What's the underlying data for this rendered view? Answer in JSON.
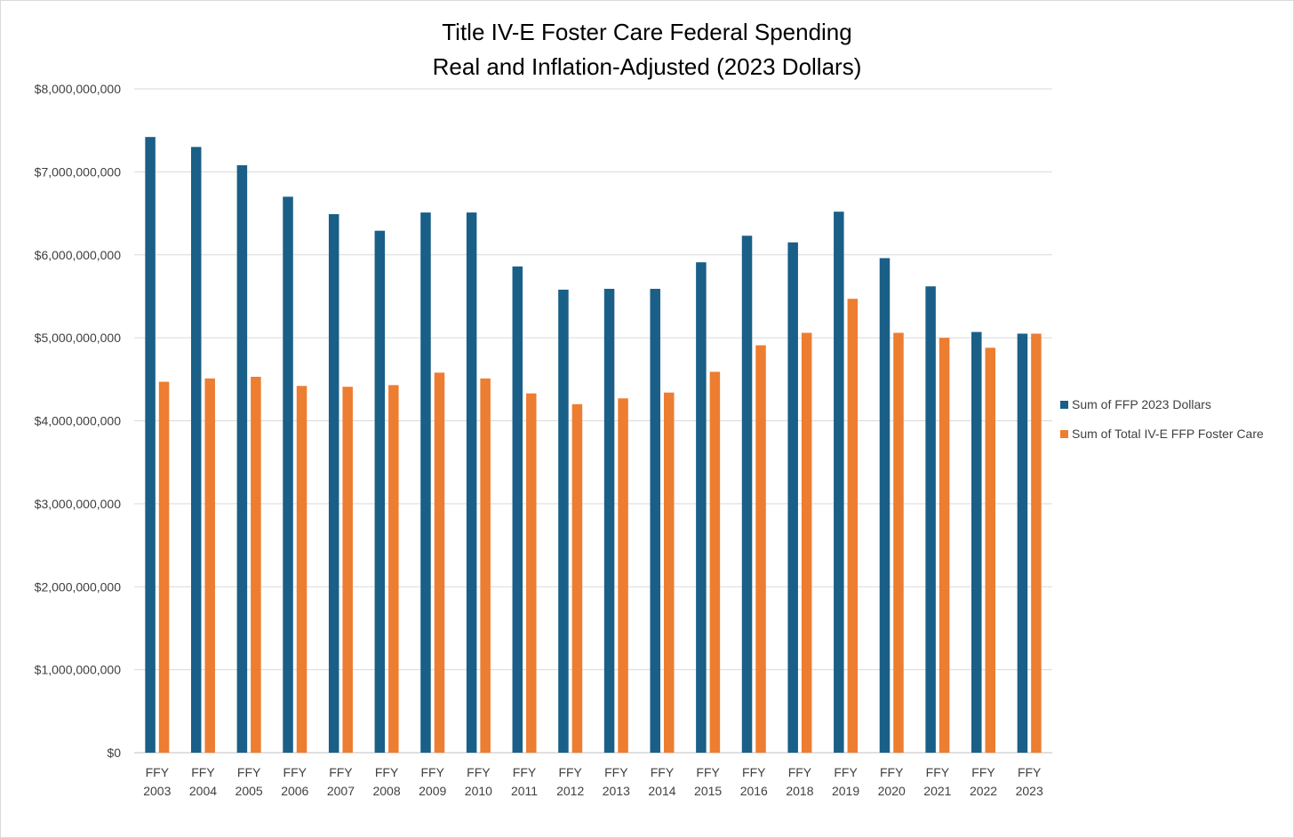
{
  "chart_data": {
    "type": "bar",
    "title_lines": [
      "Title IV-E Foster Care Federal Spending",
      "Real and Inflation-Adjusted (2023 Dollars)"
    ],
    "xlabel": "",
    "ylabel": "",
    "categories": [
      [
        "FFY",
        "2003"
      ],
      [
        "FFY",
        "2004"
      ],
      [
        "FFY",
        "2005"
      ],
      [
        "FFY",
        "2006"
      ],
      [
        "FFY",
        "2007"
      ],
      [
        "FFY",
        "2008"
      ],
      [
        "FFY",
        "2009"
      ],
      [
        "FFY",
        "2010"
      ],
      [
        "FFY",
        "2011"
      ],
      [
        "FFY",
        "2012"
      ],
      [
        "FFY",
        "2013"
      ],
      [
        "FFY",
        "2014"
      ],
      [
        "FFY",
        "2015"
      ],
      [
        "FFY",
        "2016"
      ],
      [
        "FFY",
        "2018"
      ],
      [
        "FFY",
        "2019"
      ],
      [
        "FFY",
        "2020"
      ],
      [
        "FFY",
        "2021"
      ],
      [
        "FFY",
        "2022"
      ],
      [
        "FFY",
        "2023"
      ]
    ],
    "series": [
      {
        "name": "Sum of FFP 2023 Dollars",
        "color": "#1a5f87",
        "values": [
          7420000000,
          7300000000,
          7080000000,
          6700000000,
          6490000000,
          6290000000,
          6510000000,
          6510000000,
          5860000000,
          5580000000,
          5590000000,
          5590000000,
          5910000000,
          6230000000,
          6150000000,
          6520000000,
          5960000000,
          5620000000,
          5070000000,
          5050000000
        ]
      },
      {
        "name": "Sum of Total IV-E FFP Foster Care",
        "color": "#ed7d31",
        "values": [
          4470000000,
          4510000000,
          4530000000,
          4420000000,
          4410000000,
          4430000000,
          4580000000,
          4510000000,
          4330000000,
          4200000000,
          4270000000,
          4340000000,
          4590000000,
          4910000000,
          5060000000,
          5470000000,
          5060000000,
          5000000000,
          4880000000,
          5050000000
        ]
      }
    ],
    "ylim": [
      0,
      8000000000
    ],
    "y_ticks": [
      {
        "value": 0,
        "label": "$0"
      },
      {
        "value": 1000000000,
        "label": "$1,000,000,000"
      },
      {
        "value": 2000000000,
        "label": "$2,000,000,000"
      },
      {
        "value": 3000000000,
        "label": "$3,000,000,000"
      },
      {
        "value": 4000000000,
        "label": "$4,000,000,000"
      },
      {
        "value": 5000000000,
        "label": "$5,000,000,000"
      },
      {
        "value": 6000000000,
        "label": "$6,000,000,000"
      },
      {
        "value": 7000000000,
        "label": "$7,000,000,000"
      },
      {
        "value": 8000000000,
        "label": "$8,000,000,000"
      }
    ],
    "grid": true,
    "legend_position": "right",
    "grid_color": "#d9d9d9",
    "axis_color": "#bfbfbf"
  }
}
